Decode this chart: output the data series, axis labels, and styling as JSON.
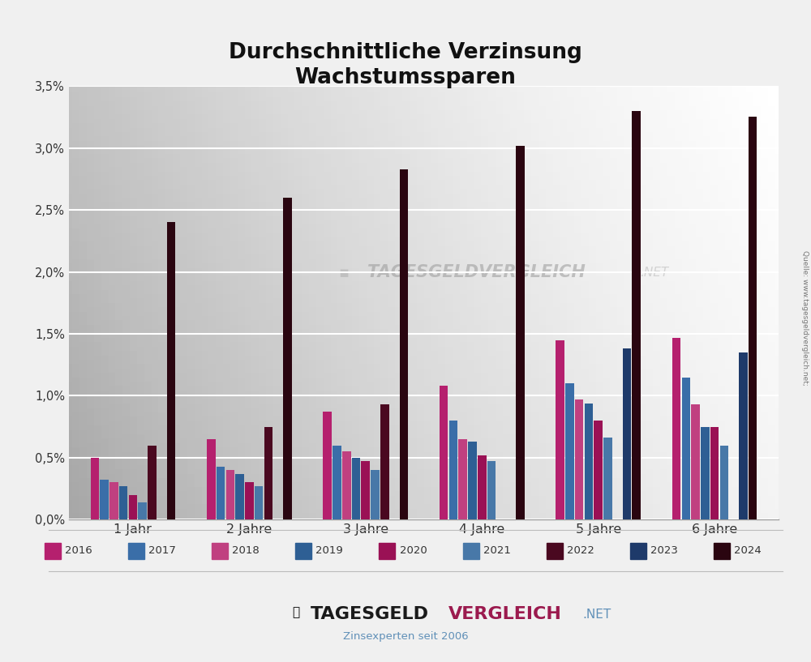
{
  "title_line1": "Durchschnittliche Verzinsung",
  "title_line2": "Wachstumssparen",
  "categories": [
    "1 Jahr",
    "2 Jahre",
    "3 Jahre",
    "4 Jahre",
    "5 Jahre",
    "6 Jahre"
  ],
  "years": [
    "2016",
    "2017",
    "2018",
    "2019",
    "2020",
    "2021",
    "2022",
    "2023",
    "2024"
  ],
  "colors": {
    "2016": "#b5206e",
    "2017": "#3a6ea8",
    "2018": "#c04080",
    "2019": "#2e5f94",
    "2020": "#9a1155",
    "2021": "#4878a8",
    "2022": "#4a0820",
    "2023": "#1e3a6a",
    "2024": "#2a0510"
  },
  "data": {
    "1 Jahr": [
      0.5,
      0.32,
      0.3,
      0.27,
      0.2,
      0.14,
      0.6,
      null,
      2.4
    ],
    "2 Jahre": [
      0.65,
      0.43,
      0.4,
      0.37,
      0.3,
      0.27,
      0.75,
      null,
      2.6
    ],
    "3 Jahre": [
      0.87,
      0.6,
      0.55,
      0.5,
      0.47,
      0.4,
      0.93,
      null,
      2.83
    ],
    "4 Jahre": [
      1.08,
      0.8,
      0.65,
      0.63,
      0.52,
      0.47,
      null,
      null,
      3.02
    ],
    "5 Jahre": [
      1.45,
      1.1,
      0.97,
      0.94,
      0.8,
      0.66,
      null,
      1.38,
      3.3
    ],
    "6 Jahre": [
      1.47,
      1.15,
      0.93,
      0.75,
      0.75,
      0.6,
      null,
      1.35,
      3.25
    ]
  },
  "yticks": [
    0.0,
    0.005,
    0.01,
    0.015,
    0.02,
    0.025,
    0.03,
    0.035
  ],
  "ytick_labels": [
    "0,0%",
    "0,5%",
    "1,0%",
    "1,5%",
    "2,0%",
    "2,5%",
    "3,0%",
    "3,5%"
  ],
  "watermark": "TAGESGELDVERGLEICH",
  "watermark2": ".NET",
  "source_text": "Quelle: www.tagesgeldvergleich.net;",
  "footer_sub": "Zinsexperten seit 2006",
  "bar_width": 0.082
}
